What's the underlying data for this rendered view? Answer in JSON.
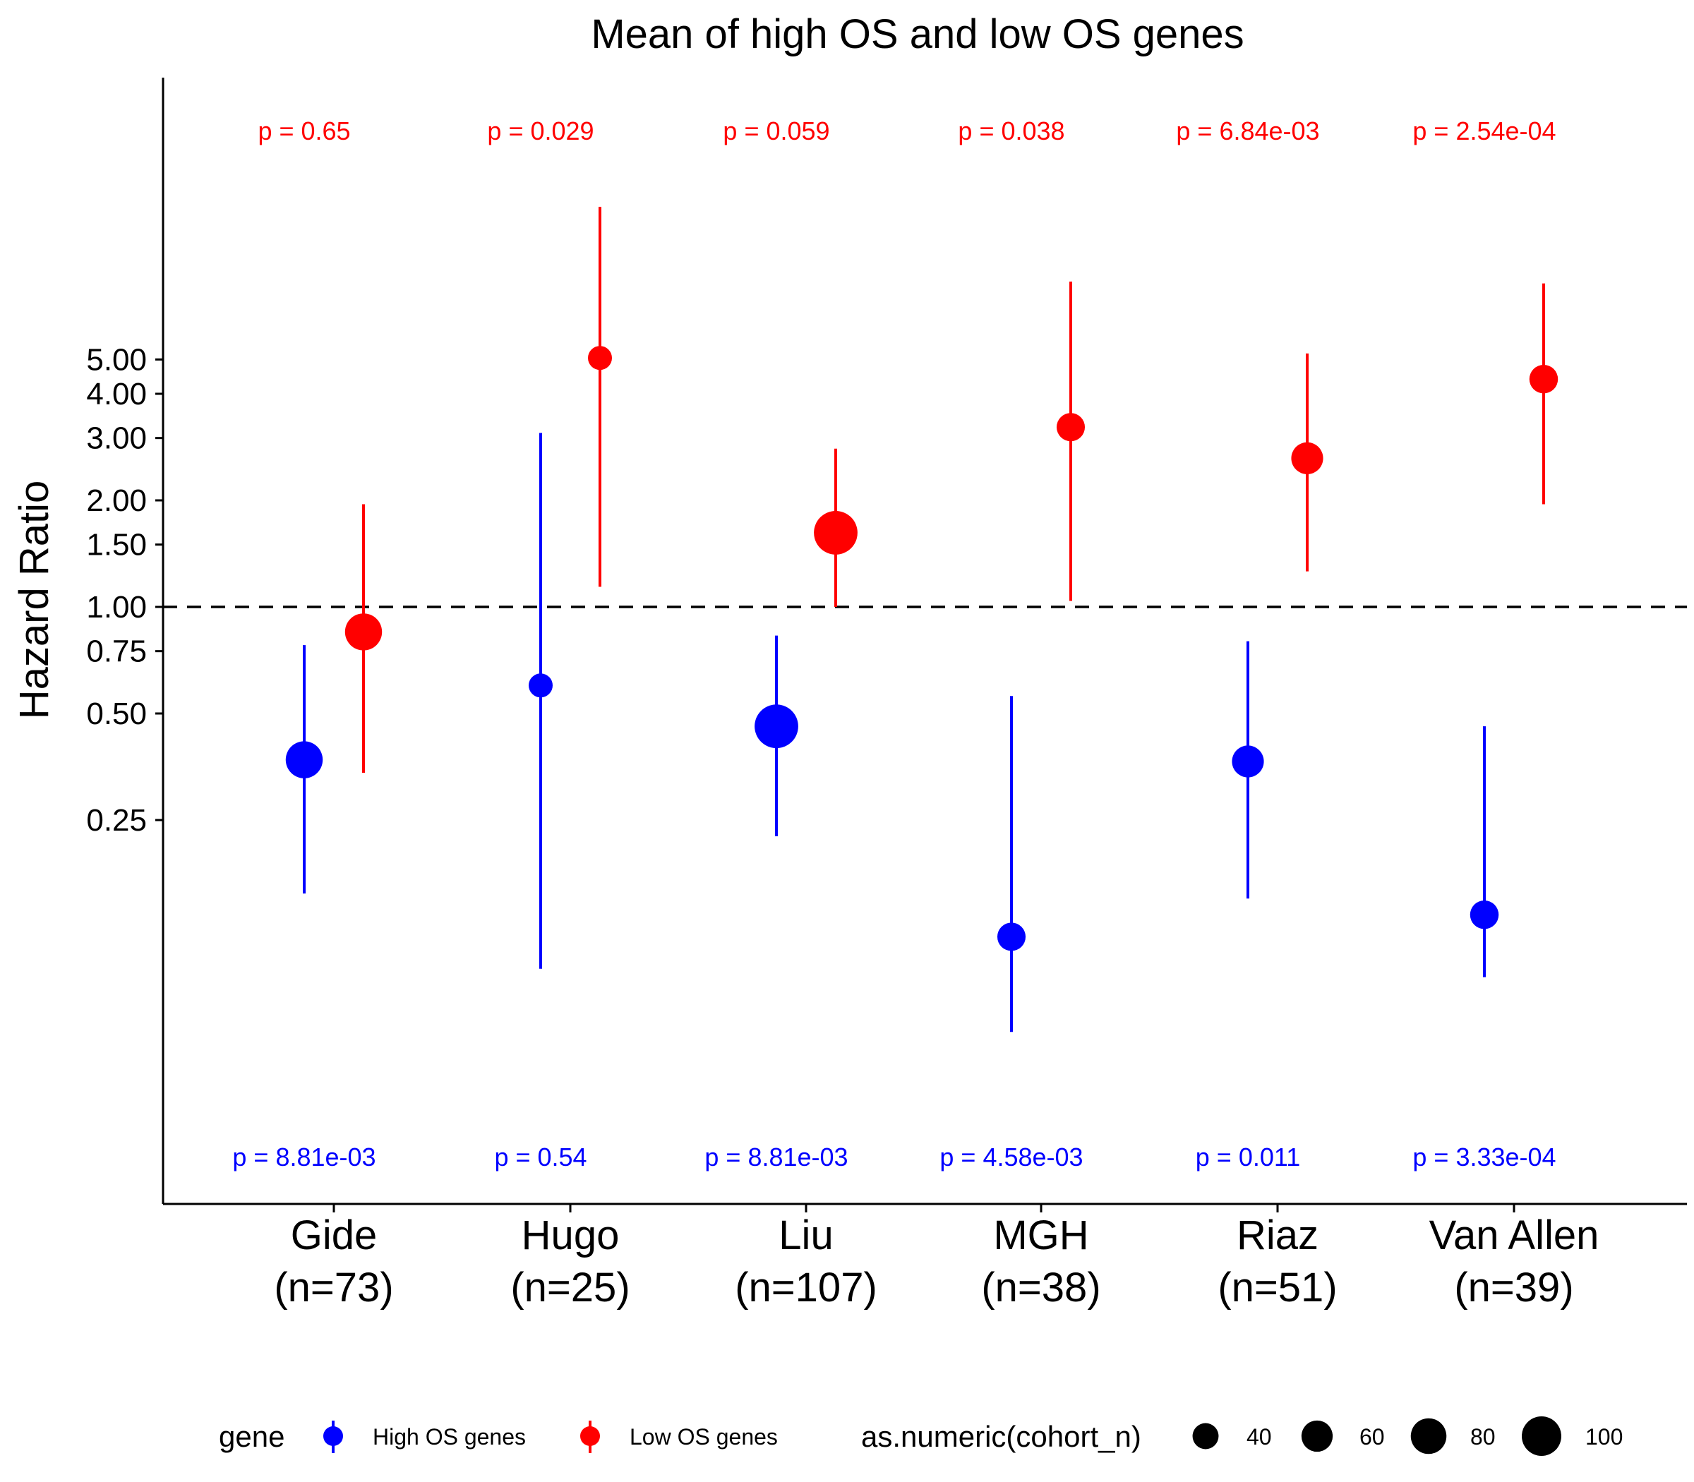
{
  "chart_data": {
    "type": "scatter",
    "subtype": "point-range (forest) plot, log y-axis",
    "title": "Mean of high OS and low OS genes",
    "xlabel": "",
    "ylabel": "Hazard Ratio",
    "y_scale": "log",
    "ylim": [
      0.055,
      14
    ],
    "y_ticks": [
      0.25,
      0.5,
      0.75,
      1.0,
      1.5,
      2.0,
      3.0,
      4.0,
      5.0
    ],
    "y_tick_labels": [
      "0.25",
      "0.50",
      "0.75",
      "1.00",
      "1.50",
      "2.00",
      "3.00",
      "4.00",
      "5.00"
    ],
    "reference_line": {
      "y": 1.0,
      "style": "dashed"
    },
    "categories": [
      {
        "name": "Gide",
        "n_label": "(n=73)",
        "n": 73
      },
      {
        "name": "Hugo",
        "n_label": "(n=25)",
        "n": 25
      },
      {
        "name": "Liu",
        "n_label": "(n=107)",
        "n": 107
      },
      {
        "name": "MGH",
        "n_label": "(n=38)",
        "n": 38
      },
      {
        "name": "Riaz",
        "n_label": "(n=51)",
        "n": 51
      },
      {
        "name": "Van Allen",
        "n_label": "(n=39)",
        "n": 39
      }
    ],
    "series": [
      {
        "name": "High OS genes",
        "color": "#0000ff",
        "hr": [
          0.37,
          0.6,
          0.46,
          0.117,
          0.366,
          0.135
        ],
        "ci_low": [
          0.155,
          0.095,
          0.225,
          0.063,
          0.15,
          0.09
        ],
        "ci_high": [
          0.78,
          3.1,
          0.83,
          0.56,
          0.8,
          0.46
        ],
        "p_labels": [
          "p = 8.81e-03",
          "p = 0.54",
          "p = 8.81e-03",
          "p = 4.58e-03",
          "p = 0.011",
          "p = 3.33e-04"
        ]
      },
      {
        "name": "Low OS genes",
        "color": "#ff0000",
        "hr": [
          0.85,
          5.05,
          1.62,
          3.22,
          2.63,
          4.4
        ],
        "ci_low": [
          0.34,
          1.14,
          1.0,
          1.04,
          1.26,
          1.95
        ],
        "ci_high": [
          1.95,
          13.5,
          2.8,
          8.3,
          5.2,
          8.2
        ],
        "p_labels": [
          "p = 0.65",
          "p = 0.029",
          "p = 0.059",
          "p = 0.038",
          "p = 6.84e-03",
          "p = 2.54e-04"
        ]
      }
    ],
    "legend": {
      "position": "bottom",
      "gene_title": "gene",
      "size_title": "as.numeric(cohort_n)",
      "size_entries": [
        40,
        60,
        80,
        100
      ]
    }
  }
}
